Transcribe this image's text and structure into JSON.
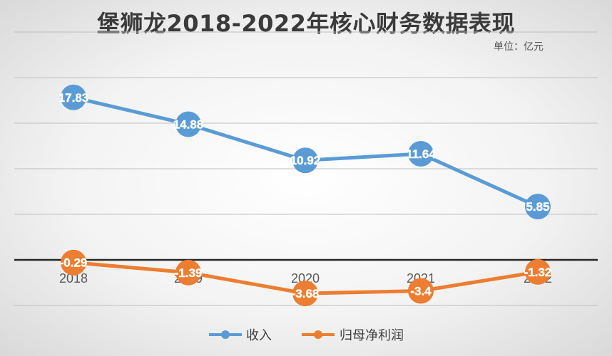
{
  "chart_data": {
    "type": "line",
    "title": "堡狮龙2018-2022年核心财务数据表现",
    "unit": "单位：亿元",
    "categories": [
      "2018",
      "2019",
      "2020",
      "2021",
      "2022"
    ],
    "series": [
      {
        "name": "收入",
        "color": "#5b9bd5",
        "values": [
          17.83,
          14.88,
          10.92,
          11.64,
          5.85
        ],
        "labels": [
          "17.83",
          "14.88",
          "10.92",
          "11.64",
          "5.85"
        ]
      },
      {
        "name": "归母净利润",
        "color": "#ed7d31",
        "values": [
          -0.29,
          -1.39,
          -3.68,
          -3.4,
          -1.32
        ],
        "labels": [
          "-0.29",
          "-1.39",
          "-3.68",
          "-3.4",
          "-1.32"
        ]
      }
    ],
    "ylim": [
      -5,
      25
    ],
    "gridlines": true,
    "legend_position": "bottom"
  }
}
